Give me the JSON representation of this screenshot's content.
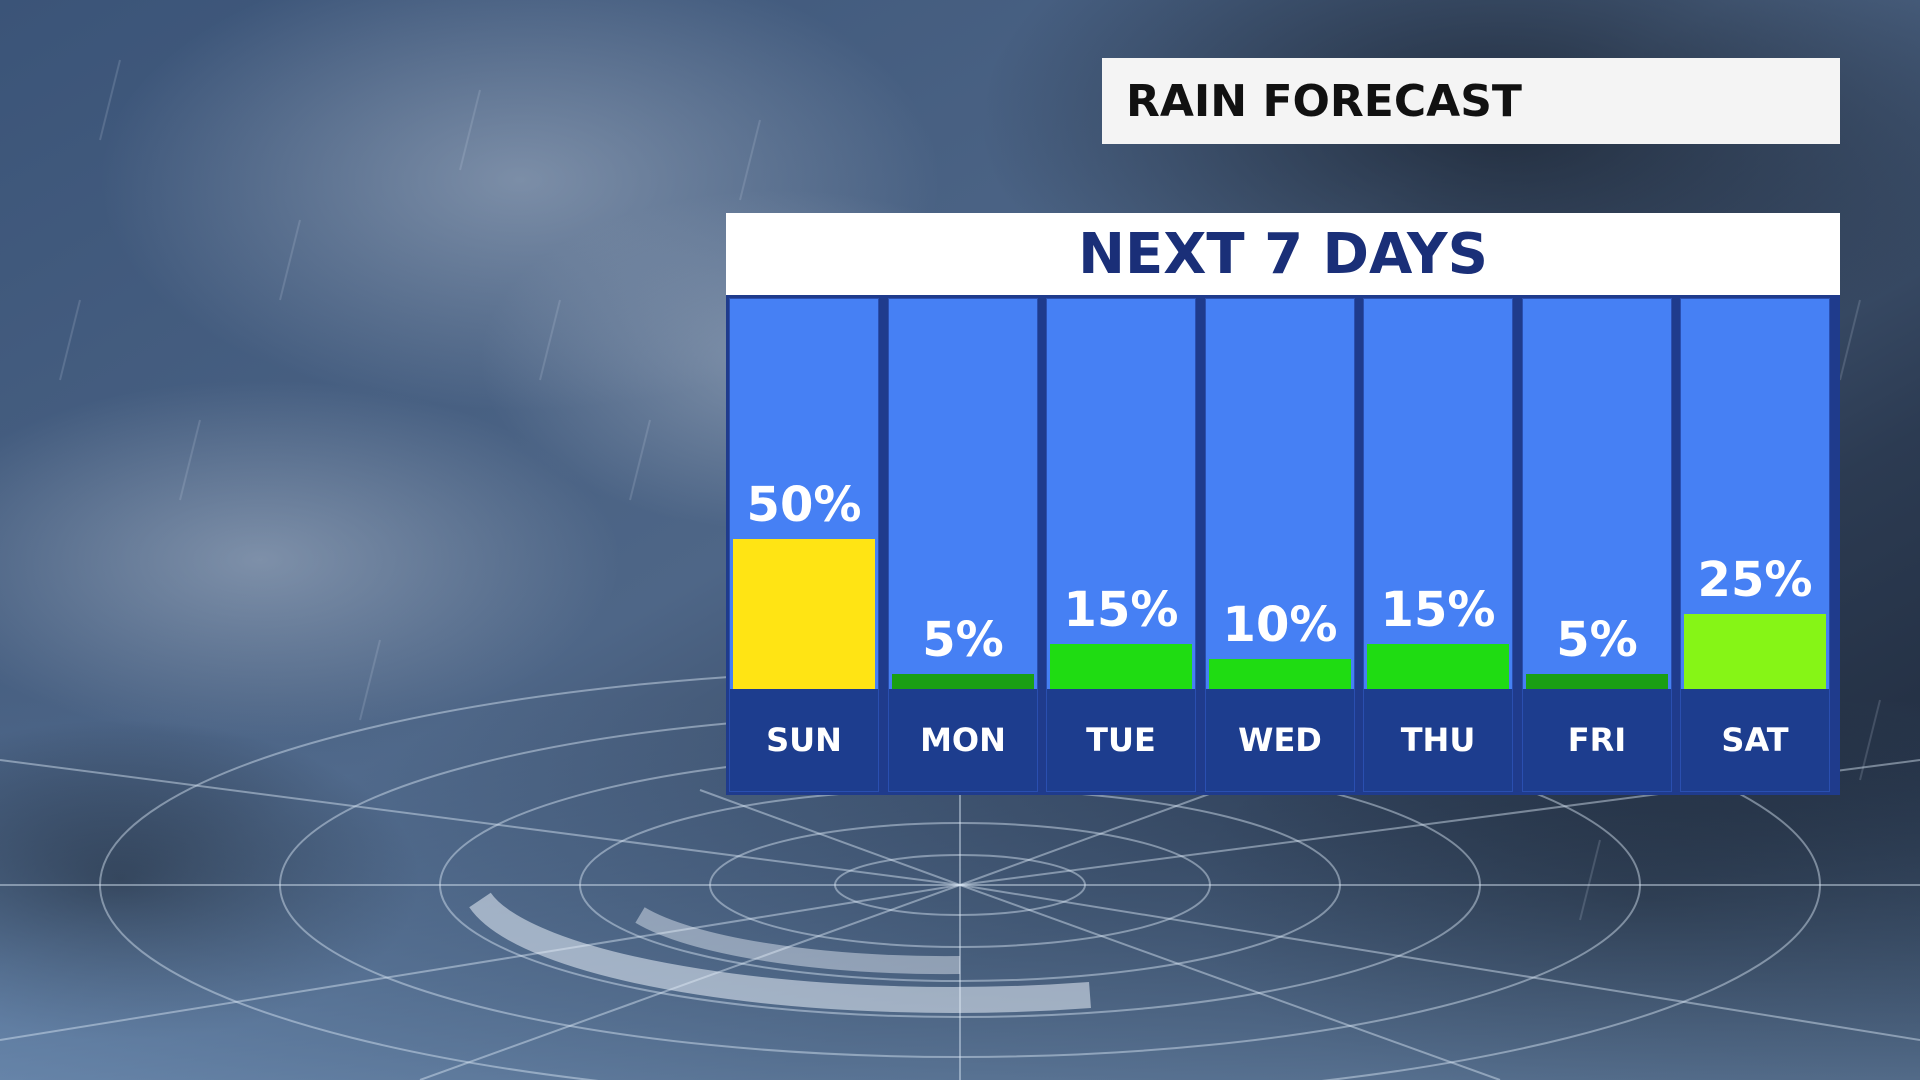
{
  "header": {
    "title": "RAIN FORECAST"
  },
  "chart_data": {
    "type": "bar",
    "title": "NEXT 7 DAYS",
    "categories": [
      "SUN",
      "MON",
      "TUE",
      "WED",
      "THU",
      "FRI",
      "SAT"
    ],
    "values": [
      50,
      5,
      15,
      10,
      15,
      5,
      25
    ],
    "value_labels": [
      "50%",
      "5%",
      "15%",
      "10%",
      "15%",
      "5%",
      "25%"
    ],
    "bar_colors": [
      "#ffe414",
      "#1a9f14",
      "#1fdc12",
      "#1fdc12",
      "#1fdc12",
      "#1a9f14",
      "#86f516"
    ],
    "unit": "%",
    "ylim": [
      0,
      100
    ],
    "grid": false,
    "legend": "none"
  }
}
